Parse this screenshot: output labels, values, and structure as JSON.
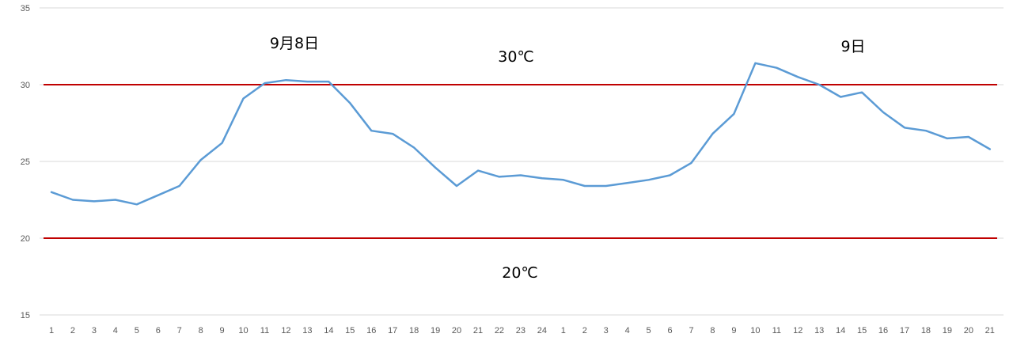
{
  "chart_data": {
    "type": "line",
    "title": "",
    "xlabel": "",
    "ylabel": "",
    "ylim": [
      15,
      35
    ],
    "yticks": [
      15,
      20,
      25,
      30,
      35
    ],
    "grid": true,
    "legend": "none",
    "categories": [
      "1",
      "2",
      "3",
      "4",
      "5",
      "6",
      "7",
      "8",
      "9",
      "10",
      "11",
      "12",
      "13",
      "14",
      "15",
      "16",
      "17",
      "18",
      "19",
      "20",
      "21",
      "22",
      "23",
      "24",
      "1",
      "2",
      "3",
      "4",
      "5",
      "6",
      "7",
      "8",
      "9",
      "10",
      "11",
      "12",
      "13",
      "14",
      "15",
      "16",
      "17",
      "18",
      "19",
      "20",
      "21"
    ],
    "series": [
      {
        "color": "#5b9bd5",
        "values": [
          23.0,
          22.5,
          22.4,
          22.5,
          22.2,
          22.8,
          23.4,
          25.1,
          26.2,
          29.1,
          30.1,
          30.3,
          30.2,
          30.2,
          28.8,
          27.0,
          26.8,
          25.9,
          24.6,
          23.4,
          24.4,
          24.0,
          24.1,
          23.9,
          23.8,
          23.4,
          23.4,
          23.6,
          23.8,
          24.1,
          24.9,
          26.8,
          28.1,
          31.4,
          31.1,
          30.5,
          30.0,
          29.2,
          29.5,
          28.2,
          27.2,
          27.0,
          26.5,
          26.6,
          25.8
        ]
      }
    ],
    "reference_lines": [
      {
        "value": 30,
        "color": "#c00000",
        "label": "30℃"
      },
      {
        "value": 20,
        "color": "#c00000",
        "label": "20℃"
      }
    ],
    "annotations": [
      {
        "text": "9月8日",
        "at_index": 11,
        "y": 32.7
      },
      {
        "text": "9日",
        "at_index": 38,
        "y": 32.5
      }
    ]
  }
}
